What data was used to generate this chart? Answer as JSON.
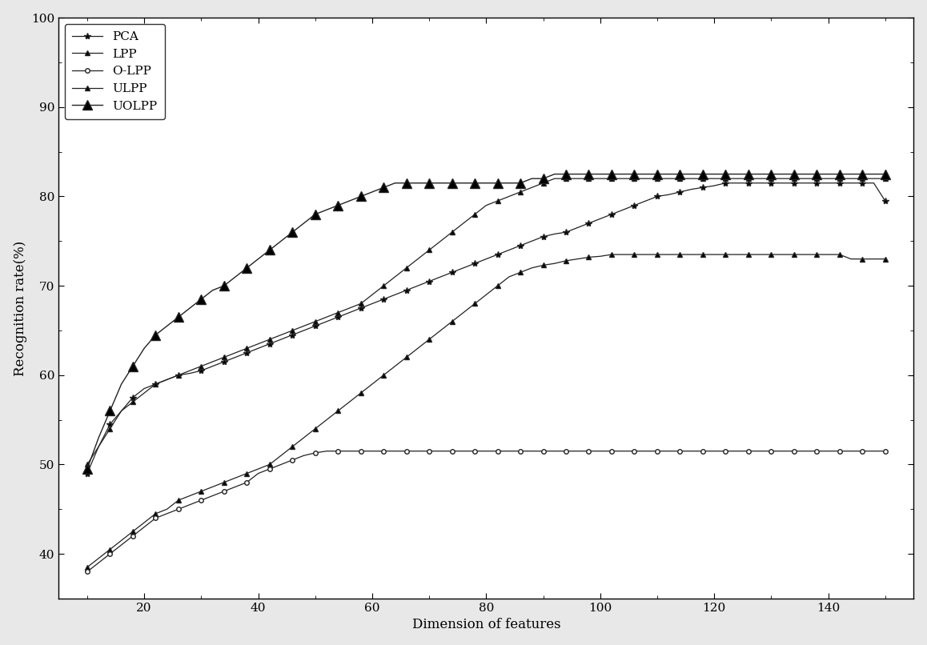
{
  "xlabel": "Dimension of features",
  "ylabel": "Recognition rate(%)",
  "xlim": [
    5,
    155
  ],
  "ylim": [
    35,
    100
  ],
  "xticks": [
    20,
    40,
    60,
    80,
    100,
    120,
    140
  ],
  "yticks": [
    40,
    50,
    60,
    70,
    80,
    90,
    100
  ],
  "series": [
    {
      "label": "PCA",
      "marker": "*",
      "color": "#222222",
      "markersize": 5,
      "linewidth": 0.9,
      "linestyle": "-",
      "markerfacecolor": "black",
      "x": [
        10,
        12,
        14,
        16,
        18,
        20,
        22,
        24,
        26,
        28,
        30,
        32,
        34,
        36,
        38,
        40,
        42,
        44,
        46,
        48,
        50,
        52,
        54,
        56,
        58,
        60,
        62,
        64,
        66,
        68,
        70,
        72,
        74,
        76,
        78,
        80,
        82,
        84,
        86,
        88,
        90,
        92,
        94,
        96,
        98,
        100,
        102,
        104,
        106,
        108,
        110,
        112,
        114,
        116,
        118,
        120,
        122,
        124,
        126,
        128,
        130,
        132,
        134,
        136,
        138,
        140,
        142,
        144,
        146,
        148,
        150
      ],
      "y": [
        49,
        52,
        54.5,
        56,
        57.5,
        58.5,
        59,
        59.5,
        60,
        60.2,
        60.5,
        61,
        61.5,
        62,
        62.5,
        63,
        63.5,
        64,
        64.5,
        65,
        65.5,
        66,
        66.5,
        67,
        67.5,
        68,
        68.5,
        69,
        69.5,
        70,
        70.5,
        71,
        71.5,
        72,
        72.5,
        73,
        73.5,
        74,
        74.5,
        75,
        75.5,
        75.8,
        76,
        76.5,
        77,
        77.5,
        78,
        78.5,
        79,
        79.5,
        80,
        80.2,
        80.5,
        80.8,
        81,
        81.2,
        81.5,
        81.5,
        81.5,
        81.5,
        81.5,
        81.5,
        81.5,
        81.5,
        81.5,
        81.5,
        81.5,
        81.5,
        81.5,
        81.5,
        79.5
      ]
    },
    {
      "label": "LPP",
      "marker": "^",
      "color": "#222222",
      "markersize": 5,
      "linewidth": 0.9,
      "linestyle": "-",
      "markerfacecolor": "black",
      "x": [
        10,
        12,
        14,
        16,
        18,
        20,
        22,
        24,
        26,
        28,
        30,
        32,
        34,
        36,
        38,
        40,
        42,
        44,
        46,
        48,
        50,
        52,
        54,
        56,
        58,
        60,
        62,
        64,
        66,
        68,
        70,
        72,
        74,
        76,
        78,
        80,
        82,
        84,
        86,
        88,
        90,
        92,
        94,
        96,
        98,
        100,
        102,
        104,
        106,
        108,
        110,
        112,
        114,
        116,
        118,
        120,
        122,
        124,
        126,
        128,
        130,
        132,
        134,
        136,
        138,
        140,
        142,
        144,
        146,
        148,
        150
      ],
      "y": [
        38.5,
        39.5,
        40.5,
        41.5,
        42.5,
        43.5,
        44.5,
        45,
        46,
        46.5,
        47,
        47.5,
        48,
        48.5,
        49,
        49.5,
        50,
        51,
        52,
        53,
        54,
        55,
        56,
        57,
        58,
        59,
        60,
        61,
        62,
        63,
        64,
        65,
        66,
        67,
        68,
        69,
        70,
        71,
        71.5,
        72,
        72.3,
        72.5,
        72.8,
        73,
        73.2,
        73.3,
        73.5,
        73.5,
        73.5,
        73.5,
        73.5,
        73.5,
        73.5,
        73.5,
        73.5,
        73.5,
        73.5,
        73.5,
        73.5,
        73.5,
        73.5,
        73.5,
        73.5,
        73.5,
        73.5,
        73.5,
        73.5,
        73.0,
        73.0,
        73.0,
        73.0
      ]
    },
    {
      "label": "O-LPP",
      "marker": "o",
      "color": "#222222",
      "markersize": 4,
      "linewidth": 0.9,
      "linestyle": "-",
      "markerfacecolor": "white",
      "x": [
        10,
        12,
        14,
        16,
        18,
        20,
        22,
        24,
        26,
        28,
        30,
        32,
        34,
        36,
        38,
        40,
        42,
        44,
        46,
        48,
        50,
        52,
        54,
        56,
        58,
        60,
        62,
        64,
        66,
        68,
        70,
        72,
        74,
        76,
        78,
        80,
        82,
        84,
        86,
        88,
        90,
        92,
        94,
        96,
        98,
        100,
        102,
        104,
        106,
        108,
        110,
        112,
        114,
        116,
        118,
        120,
        122,
        124,
        126,
        128,
        130,
        132,
        134,
        136,
        138,
        140,
        142,
        144,
        146,
        148,
        150
      ],
      "y": [
        38,
        39,
        40,
        41,
        42,
        43,
        44,
        44.5,
        45,
        45.5,
        46,
        46.5,
        47,
        47.5,
        48,
        49,
        49.5,
        50,
        50.5,
        51,
        51.3,
        51.5,
        51.5,
        51.5,
        51.5,
        51.5,
        51.5,
        51.5,
        51.5,
        51.5,
        51.5,
        51.5,
        51.5,
        51.5,
        51.5,
        51.5,
        51.5,
        51.5,
        51.5,
        51.5,
        51.5,
        51.5,
        51.5,
        51.5,
        51.5,
        51.5,
        51.5,
        51.5,
        51.5,
        51.5,
        51.5,
        51.5,
        51.5,
        51.5,
        51.5,
        51.5,
        51.5,
        51.5,
        51.5,
        51.5,
        51.5,
        51.5,
        51.5,
        51.5,
        51.5,
        51.5,
        51.5,
        51.5,
        51.5,
        51.5,
        51.5
      ]
    },
    {
      "label": "ULPP",
      "marker": "^",
      "color": "#222222",
      "markersize": 4,
      "linewidth": 0.9,
      "linestyle": "-",
      "markerfacecolor": "black",
      "x": [
        10,
        12,
        14,
        16,
        18,
        20,
        22,
        24,
        26,
        28,
        30,
        32,
        34,
        36,
        38,
        40,
        42,
        44,
        46,
        48,
        50,
        52,
        54,
        56,
        58,
        60,
        62,
        64,
        66,
        68,
        70,
        72,
        74,
        76,
        78,
        80,
        82,
        84,
        86,
        88,
        90,
        92,
        94,
        96,
        98,
        100,
        102,
        104,
        106,
        108,
        110,
        112,
        114,
        116,
        118,
        120,
        122,
        124,
        126,
        128,
        130,
        132,
        134,
        136,
        138,
        140,
        142,
        144,
        146,
        148,
        150
      ],
      "y": [
        50,
        52,
        54,
        56,
        57,
        58,
        59,
        59.5,
        60,
        60.5,
        61,
        61.5,
        62,
        62.5,
        63,
        63.5,
        64,
        64.5,
        65,
        65.5,
        66,
        66.5,
        67,
        67.5,
        68,
        69,
        70,
        71,
        72,
        73,
        74,
        75,
        76,
        77,
        78,
        79,
        79.5,
        80,
        80.5,
        81,
        81.5,
        82,
        82,
        82,
        82,
        82,
        82,
        82,
        82,
        82,
        82,
        82,
        82,
        82,
        82,
        82,
        82,
        82,
        82,
        82,
        82,
        82,
        82,
        82,
        82,
        82,
        82,
        82,
        82,
        82,
        82
      ]
    },
    {
      "label": "UOLPP",
      "marker": "^",
      "color": "#222222",
      "markersize": 7,
      "linewidth": 1.0,
      "linestyle": "-",
      "markerfacecolor": "black",
      "x": [
        10,
        12,
        14,
        16,
        18,
        20,
        22,
        24,
        26,
        28,
        30,
        32,
        34,
        36,
        38,
        40,
        42,
        44,
        46,
        48,
        50,
        52,
        54,
        56,
        58,
        60,
        62,
        64,
        66,
        68,
        70,
        72,
        74,
        76,
        78,
        80,
        82,
        84,
        86,
        88,
        90,
        92,
        94,
        96,
        98,
        100,
        102,
        104,
        106,
        108,
        110,
        112,
        114,
        116,
        118,
        120,
        122,
        124,
        126,
        128,
        130,
        132,
        134,
        136,
        138,
        140,
        142,
        144,
        146,
        148,
        150
      ],
      "y": [
        49.5,
        53,
        56,
        59,
        61,
        63,
        64.5,
        65.5,
        66.5,
        67.5,
        68.5,
        69.5,
        70,
        71,
        72,
        73,
        74,
        75,
        76,
        77,
        78,
        78.5,
        79,
        79.5,
        80,
        80.5,
        81,
        81.5,
        81.5,
        81.5,
        81.5,
        81.5,
        81.5,
        81.5,
        81.5,
        81.5,
        81.5,
        81.5,
        81.5,
        82,
        82,
        82.5,
        82.5,
        82.5,
        82.5,
        82.5,
        82.5,
        82.5,
        82.5,
        82.5,
        82.5,
        82.5,
        82.5,
        82.5,
        82.5,
        82.5,
        82.5,
        82.5,
        82.5,
        82.5,
        82.5,
        82.5,
        82.5,
        82.5,
        82.5,
        82.5,
        82.5,
        82.5,
        82.5,
        82.5,
        82.5
      ]
    }
  ],
  "legend_loc": "upper left",
  "background_color": "#ffffff",
  "figure_facecolor": "#e8e8e8"
}
